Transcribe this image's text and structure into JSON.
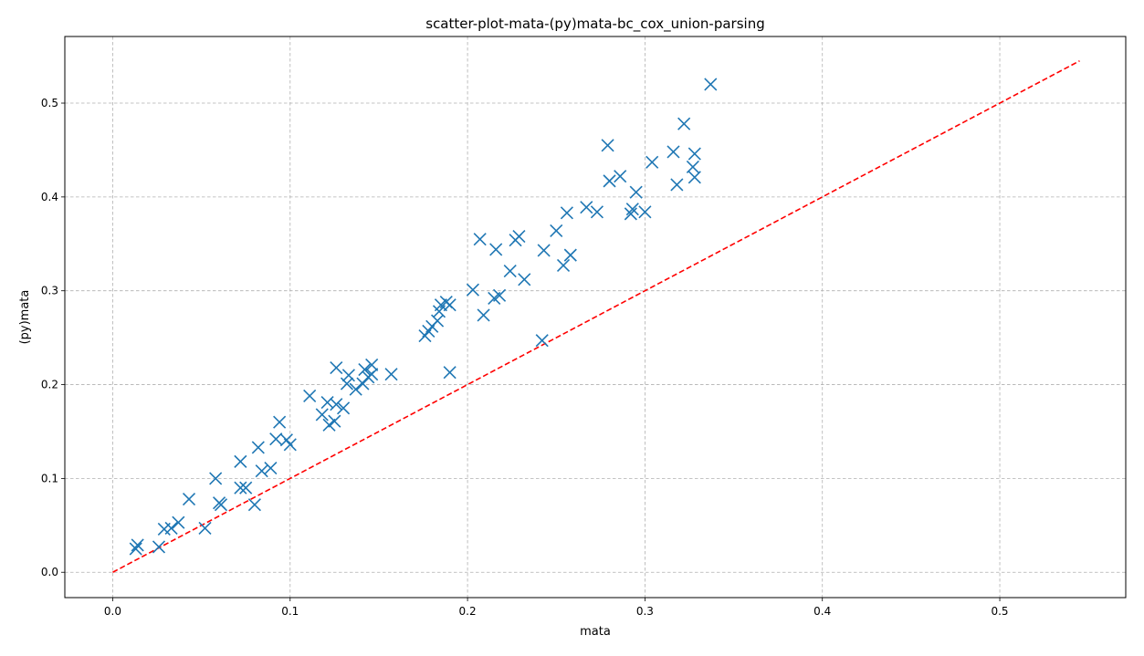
{
  "chart_data": {
    "type": "scatter",
    "title": "scatter-plot-mata-(py)mata-bc_cox_union-parsing",
    "xlabel": "mata",
    "ylabel": "(py)mata",
    "xlim": [
      -0.027,
      0.571
    ],
    "ylim": [
      -0.027,
      0.571
    ],
    "xticks": [
      0.0,
      0.1,
      0.2,
      0.3,
      0.4,
      0.5
    ],
    "xtick_labels": [
      "0.0",
      "0.1",
      "0.2",
      "0.3",
      "0.4",
      "0.5"
    ],
    "yticks": [
      0.0,
      0.1,
      0.2,
      0.3,
      0.4,
      0.5
    ],
    "ytick_labels": [
      "0.0",
      "0.1",
      "0.2",
      "0.3",
      "0.4",
      "0.5"
    ],
    "grid": true,
    "marker": "x",
    "colors": {
      "points": "#1f77b4",
      "reference_line": "#ff0000",
      "grid": "#b0b0b0"
    },
    "reference_line": {
      "style": "dashed",
      "x": [
        0.0,
        0.545
      ],
      "y": [
        0.0,
        0.545
      ]
    },
    "series": [
      {
        "points": [
          [
            0.013,
            0.025
          ],
          [
            0.014,
            0.029
          ],
          [
            0.026,
            0.027
          ],
          [
            0.029,
            0.046
          ],
          [
            0.033,
            0.047
          ],
          [
            0.037,
            0.053
          ],
          [
            0.043,
            0.078
          ],
          [
            0.052,
            0.047
          ],
          [
            0.058,
            0.1
          ],
          [
            0.06,
            0.074
          ],
          [
            0.061,
            0.072
          ],
          [
            0.072,
            0.09
          ],
          [
            0.072,
            0.118
          ],
          [
            0.075,
            0.09
          ],
          [
            0.08,
            0.072
          ],
          [
            0.082,
            0.133
          ],
          [
            0.084,
            0.108
          ],
          [
            0.089,
            0.111
          ],
          [
            0.092,
            0.142
          ],
          [
            0.094,
            0.16
          ],
          [
            0.098,
            0.141
          ],
          [
            0.1,
            0.136
          ],
          [
            0.111,
            0.188
          ],
          [
            0.118,
            0.168
          ],
          [
            0.121,
            0.181
          ],
          [
            0.122,
            0.157
          ],
          [
            0.125,
            0.161
          ],
          [
            0.126,
            0.179
          ],
          [
            0.126,
            0.218
          ],
          [
            0.13,
            0.175
          ],
          [
            0.132,
            0.201
          ],
          [
            0.133,
            0.21
          ],
          [
            0.137,
            0.195
          ],
          [
            0.141,
            0.201
          ],
          [
            0.142,
            0.216
          ],
          [
            0.144,
            0.208
          ],
          [
            0.146,
            0.221
          ],
          [
            0.146,
            0.211
          ],
          [
            0.157,
            0.211
          ],
          [
            0.176,
            0.252
          ],
          [
            0.178,
            0.257
          ],
          [
            0.18,
            0.262
          ],
          [
            0.183,
            0.268
          ],
          [
            0.184,
            0.278
          ],
          [
            0.185,
            0.285
          ],
          [
            0.188,
            0.288
          ],
          [
            0.19,
            0.285
          ],
          [
            0.19,
            0.213
          ],
          [
            0.203,
            0.301
          ],
          [
            0.207,
            0.355
          ],
          [
            0.209,
            0.274
          ],
          [
            0.215,
            0.292
          ],
          [
            0.216,
            0.344
          ],
          [
            0.218,
            0.295
          ],
          [
            0.224,
            0.321
          ],
          [
            0.227,
            0.354
          ],
          [
            0.229,
            0.358
          ],
          [
            0.232,
            0.312
          ],
          [
            0.242,
            0.247
          ],
          [
            0.243,
            0.343
          ],
          [
            0.25,
            0.364
          ],
          [
            0.254,
            0.327
          ],
          [
            0.256,
            0.383
          ],
          [
            0.258,
            0.338
          ],
          [
            0.267,
            0.389
          ],
          [
            0.273,
            0.384
          ],
          [
            0.279,
            0.455
          ],
          [
            0.28,
            0.417
          ],
          [
            0.286,
            0.422
          ],
          [
            0.292,
            0.382
          ],
          [
            0.293,
            0.387
          ],
          [
            0.295,
            0.405
          ],
          [
            0.3,
            0.384
          ],
          [
            0.304,
            0.437
          ],
          [
            0.316,
            0.448
          ],
          [
            0.318,
            0.413
          ],
          [
            0.322,
            0.478
          ],
          [
            0.327,
            0.432
          ],
          [
            0.328,
            0.421
          ],
          [
            0.328,
            0.446
          ],
          [
            0.337,
            0.52
          ]
        ]
      }
    ]
  }
}
